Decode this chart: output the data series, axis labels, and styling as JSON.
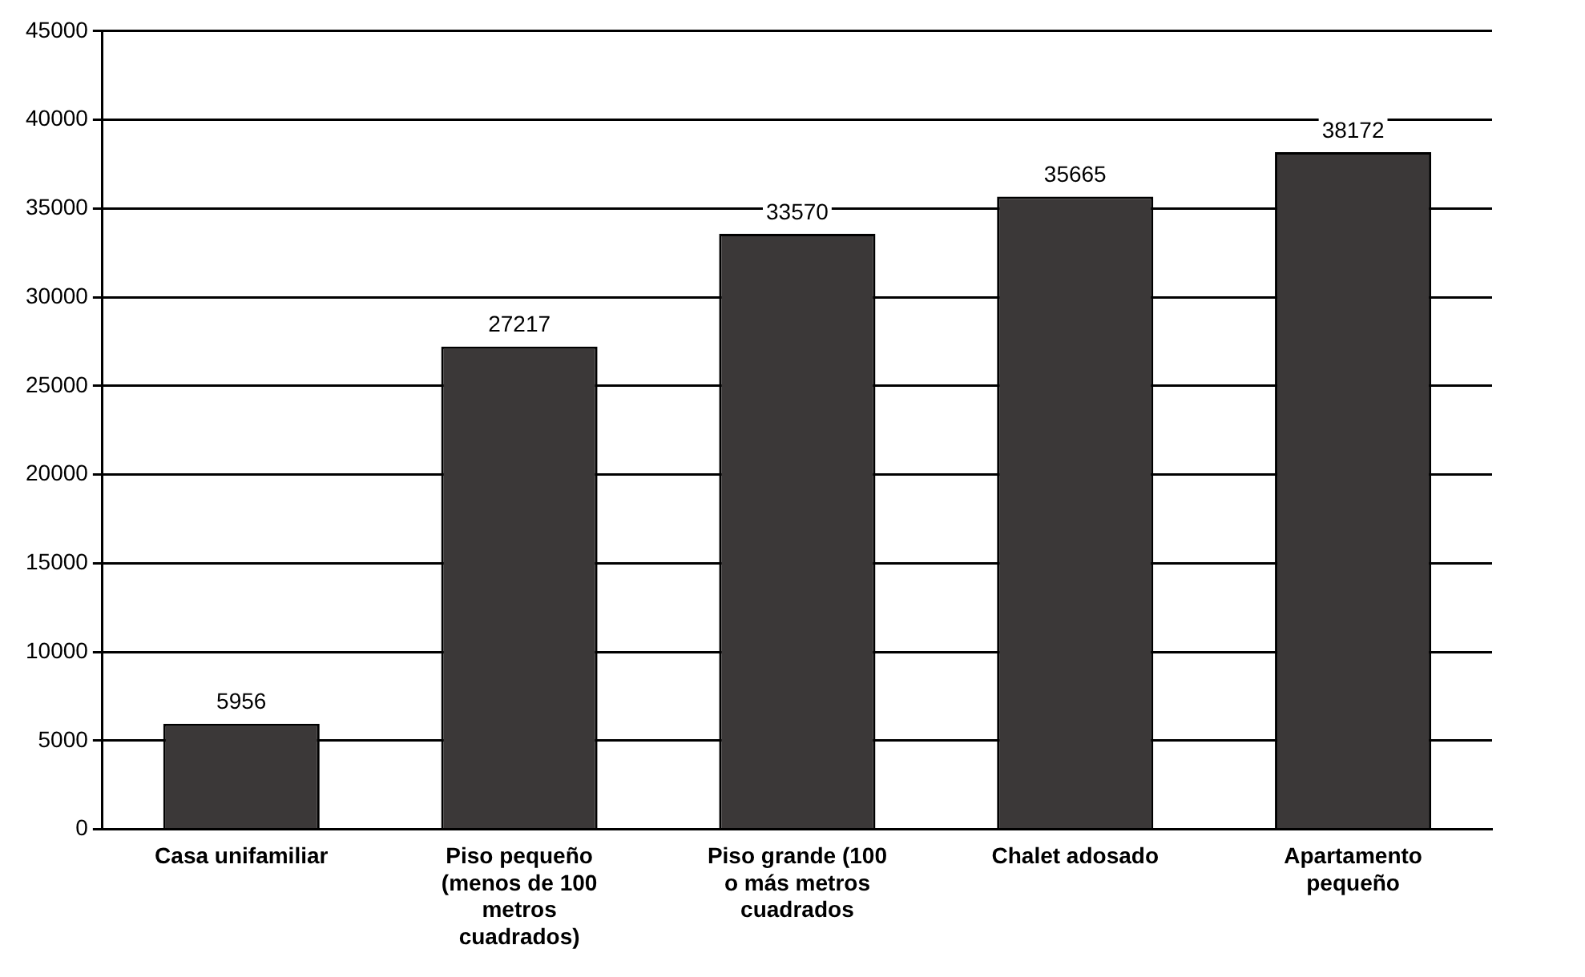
{
  "chart_data": {
    "type": "bar",
    "categories": [
      "Casa unifamiliar",
      "Piso pequeño (menos de 100 metros cuadrados)",
      "Piso grande (100 o más metros cuadrados",
      "Chalet adosado",
      "Apartamento pequeño"
    ],
    "values": [
      5956,
      27217,
      33570,
      35665,
      38172
    ],
    "color": "#3b3838",
    "ylim": [
      0,
      45000
    ],
    "yticks": [
      0,
      5000,
      10000,
      15000,
      20000,
      25000,
      30000,
      35000,
      40000,
      45000
    ],
    "grid": "y",
    "data_labels": true,
    "legend": false
  }
}
